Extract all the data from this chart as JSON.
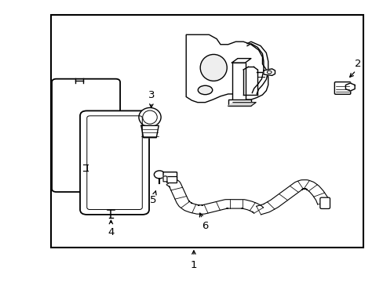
{
  "bg_color": "#ffffff",
  "line_color": "#000000",
  "label_color": "#000000",
  "fig_width": 4.89,
  "fig_height": 3.6,
  "dpi": 100,
  "border": [
    0.13,
    0.12,
    0.82,
    0.83
  ]
}
